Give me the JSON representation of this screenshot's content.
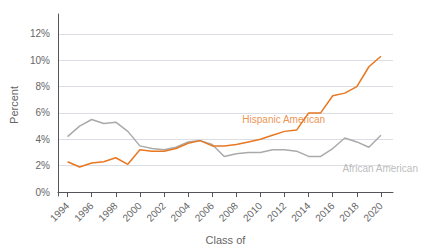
{
  "chart_data": {
    "type": "line",
    "xlabel": "Class of",
    "ylabel": "Percent",
    "x": [
      1994,
      1995,
      1996,
      1997,
      1998,
      1999,
      2000,
      2001,
      2002,
      2003,
      2004,
      2005,
      2006,
      2007,
      2008,
      2009,
      2010,
      2011,
      2012,
      2013,
      2014,
      2015,
      2016,
      2017,
      2018,
      2019,
      2020
    ],
    "series": [
      {
        "name": "African American",
        "color": "#AAAAAA",
        "values": [
          4.2,
          5.0,
          5.5,
          5.2,
          5.3,
          4.6,
          3.5,
          3.3,
          3.2,
          3.4,
          3.8,
          3.9,
          3.6,
          2.7,
          2.9,
          3.0,
          3.0,
          3.2,
          3.2,
          3.1,
          2.7,
          2.7,
          3.3,
          4.1,
          3.8,
          3.4,
          4.3
        ]
      },
      {
        "name": "Hispanic American",
        "color": "#E87722",
        "values": [
          2.3,
          1.9,
          2.2,
          2.3,
          2.6,
          2.1,
          3.2,
          3.1,
          3.1,
          3.3,
          3.7,
          3.9,
          3.5,
          3.5,
          3.6,
          3.8,
          4.0,
          4.3,
          4.6,
          4.7,
          6.0,
          6.0,
          7.3,
          7.5,
          8.0,
          9.5,
          10.3
        ]
      }
    ],
    "annotations": [
      {
        "text": "Hispanic American",
        "x": 2008.5,
        "y": 5.1,
        "color": "#E87722"
      },
      {
        "text": "African American",
        "x": 2016.8,
        "y": 2.2,
        "color": "#AAAAAA"
      }
    ],
    "xlim": [
      1993.2,
      2021.0
    ],
    "xticks": [
      1994,
      1996,
      1998,
      2000,
      2002,
      2004,
      2006,
      2008,
      2010,
      2012,
      2014,
      2016,
      2018,
      2020
    ],
    "ylim": [
      -0.3,
      13.5
    ],
    "yticks": [
      {
        "value": 0,
        "label": "0%"
      },
      {
        "value": 2,
        "label": "2%"
      },
      {
        "value": 4,
        "label": "4%"
      },
      {
        "value": 6,
        "label": "6%"
      },
      {
        "value": 8,
        "label": "8%"
      },
      {
        "value": 10,
        "label": "10%"
      },
      {
        "value": 12,
        "label": "12%"
      }
    ],
    "grid": true,
    "legend": false
  }
}
